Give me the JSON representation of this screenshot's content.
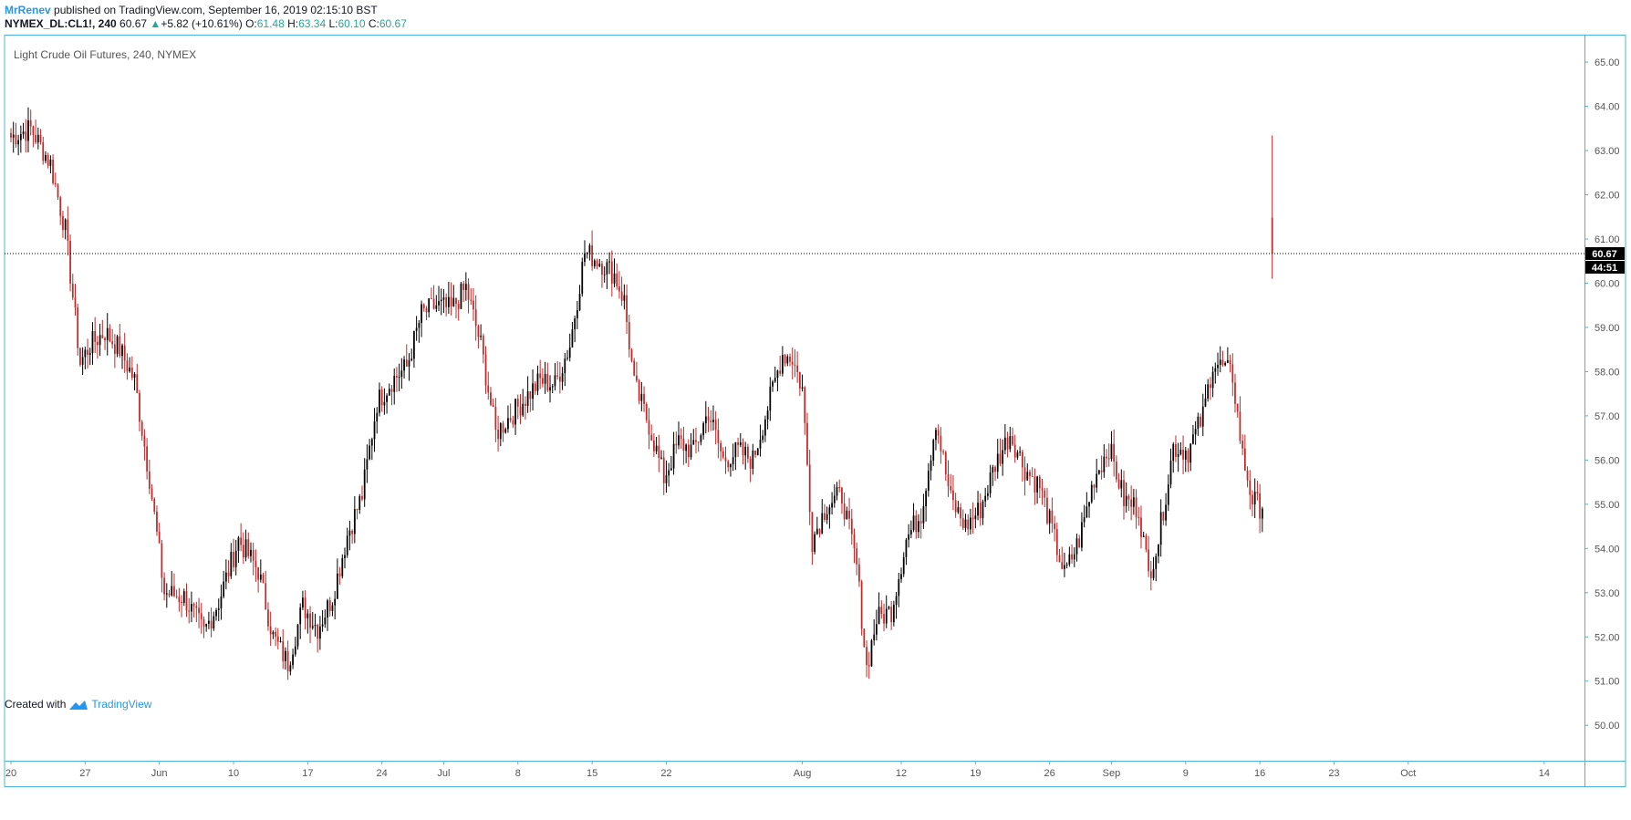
{
  "header": {
    "author": "MrRenev",
    "published": "published on TradingView.com, September 16, 2019 02:15:10 BST"
  },
  "quote": {
    "symbol": "NYMEX_DL:CL1!, 240",
    "last": "60.67",
    "change_arrow": "▲",
    "change": "+5.82 (+10.61%)",
    "o_label": "O:",
    "o": "61.48",
    "h_label": "H:",
    "h": "63.34",
    "l_label": "L:",
    "l": "60.10",
    "c_label": "C:",
    "c": "60.67"
  },
  "footer": {
    "created_with": "Created with",
    "brand": "TradingView",
    "logo_icon": "tradingview-logo-icon"
  },
  "colors": {
    "up": "#000000",
    "down": "#c62828",
    "accent": "#2196f3",
    "border": "#4db6d8",
    "green": "#26a69a"
  },
  "chart_data": {
    "type": "candlestick",
    "title": "Light Crude Oil Futures, 240, NYMEX",
    "ylim": [
      49.2,
      65.6
    ],
    "y_ticks": [
      "50.00",
      "51.00",
      "52.00",
      "53.00",
      "54.00",
      "55.00",
      "56.00",
      "57.00",
      "58.00",
      "59.00",
      "60.00",
      "61.00",
      "62.00",
      "63.00",
      "64.00",
      "65.00"
    ],
    "x_ticks": [
      {
        "label": "20",
        "bar": 0
      },
      {
        "label": "27",
        "bar": 30
      },
      {
        "label": "Jun",
        "bar": 60
      },
      {
        "label": "10",
        "bar": 90
      },
      {
        "label": "17",
        "bar": 120
      },
      {
        "label": "24",
        "bar": 150
      },
      {
        "label": "Jul",
        "bar": 175
      },
      {
        "label": "8",
        "bar": 205
      },
      {
        "label": "15",
        "bar": 235
      },
      {
        "label": "22",
        "bar": 265
      },
      {
        "label": "Aug",
        "bar": 320
      },
      {
        "label": "12",
        "bar": 360
      },
      {
        "label": "19",
        "bar": 390
      },
      {
        "label": "26",
        "bar": 420
      },
      {
        "label": "Sep",
        "bar": 445
      },
      {
        "label": "9",
        "bar": 475
      },
      {
        "label": "16",
        "bar": 505
      },
      {
        "label": "23",
        "bar": 535
      },
      {
        "label": "Oct",
        "bar": 565
      },
      {
        "label": "14",
        "bar": 620
      }
    ],
    "x_range_bars": [
      0,
      630
    ],
    "last_price": 60.67,
    "last_price_label": "60.67",
    "countdown_label": "44:51",
    "anchors": [
      {
        "bar": 0,
        "close": 63.3
      },
      {
        "bar": 8,
        "close": 63.5
      },
      {
        "bar": 16,
        "close": 62.7
      },
      {
        "bar": 22,
        "close": 61.2
      },
      {
        "bar": 28,
        "close": 58.2
      },
      {
        "bar": 32,
        "close": 58.6
      },
      {
        "bar": 38,
        "close": 58.9
      },
      {
        "bar": 44,
        "close": 58.5
      },
      {
        "bar": 50,
        "close": 57.8
      },
      {
        "bar": 56,
        "close": 55.6
      },
      {
        "bar": 62,
        "close": 53.0
      },
      {
        "bar": 70,
        "close": 52.9
      },
      {
        "bar": 78,
        "close": 52.1
      },
      {
        "bar": 84,
        "close": 52.8
      },
      {
        "bar": 92,
        "close": 54.2
      },
      {
        "bar": 100,
        "close": 53.5
      },
      {
        "bar": 106,
        "close": 52.0
      },
      {
        "bar": 112,
        "close": 51.4
      },
      {
        "bar": 118,
        "close": 52.7
      },
      {
        "bar": 124,
        "close": 52.2
      },
      {
        "bar": 130,
        "close": 52.9
      },
      {
        "bar": 136,
        "close": 54.3
      },
      {
        "bar": 142,
        "close": 55.2
      },
      {
        "bar": 148,
        "close": 57.3
      },
      {
        "bar": 154,
        "close": 57.8
      },
      {
        "bar": 160,
        "close": 58.1
      },
      {
        "bar": 166,
        "close": 59.3
      },
      {
        "bar": 172,
        "close": 59.5
      },
      {
        "bar": 178,
        "close": 59.4
      },
      {
        "bar": 184,
        "close": 59.9
      },
      {
        "bar": 190,
        "close": 58.6
      },
      {
        "bar": 196,
        "close": 56.6
      },
      {
        "bar": 202,
        "close": 57.0
      },
      {
        "bar": 208,
        "close": 57.4
      },
      {
        "bar": 214,
        "close": 57.8
      },
      {
        "bar": 220,
        "close": 57.7
      },
      {
        "bar": 226,
        "close": 58.6
      },
      {
        "bar": 232,
        "close": 60.7
      },
      {
        "bar": 238,
        "close": 60.5
      },
      {
        "bar": 244,
        "close": 60.2
      },
      {
        "bar": 248,
        "close": 59.6
      },
      {
        "bar": 252,
        "close": 57.7
      },
      {
        "bar": 258,
        "close": 56.8
      },
      {
        "bar": 264,
        "close": 55.6
      },
      {
        "bar": 270,
        "close": 56.4
      },
      {
        "bar": 276,
        "close": 56.2
      },
      {
        "bar": 282,
        "close": 57.1
      },
      {
        "bar": 288,
        "close": 56.0
      },
      {
        "bar": 294,
        "close": 56.2
      },
      {
        "bar": 300,
        "close": 56.0
      },
      {
        "bar": 306,
        "close": 57.2
      },
      {
        "bar": 312,
        "close": 58.4
      },
      {
        "bar": 316,
        "close": 58.3
      },
      {
        "bar": 320,
        "close": 57.6
      },
      {
        "bar": 324,
        "close": 54.2
      },
      {
        "bar": 330,
        "close": 55.0
      },
      {
        "bar": 336,
        "close": 55.2
      },
      {
        "bar": 342,
        "close": 53.6
      },
      {
        "bar": 346,
        "close": 51.3
      },
      {
        "bar": 350,
        "close": 52.4
      },
      {
        "bar": 356,
        "close": 52.6
      },
      {
        "bar": 362,
        "close": 54.2
      },
      {
        "bar": 368,
        "close": 54.8
      },
      {
        "bar": 374,
        "close": 56.9
      },
      {
        "bar": 380,
        "close": 55.1
      },
      {
        "bar": 386,
        "close": 54.5
      },
      {
        "bar": 392,
        "close": 54.9
      },
      {
        "bar": 398,
        "close": 55.9
      },
      {
        "bar": 404,
        "close": 56.6
      },
      {
        "bar": 410,
        "close": 55.8
      },
      {
        "bar": 416,
        "close": 55.4
      },
      {
        "bar": 420,
        "close": 54.6
      },
      {
        "bar": 426,
        "close": 53.4
      },
      {
        "bar": 432,
        "close": 54.2
      },
      {
        "bar": 438,
        "close": 55.6
      },
      {
        "bar": 444,
        "close": 56.3
      },
      {
        "bar": 450,
        "close": 55.1
      },
      {
        "bar": 456,
        "close": 54.9
      },
      {
        "bar": 460,
        "close": 53.4
      },
      {
        "bar": 464,
        "close": 54.2
      },
      {
        "bar": 470,
        "close": 56.3
      },
      {
        "bar": 476,
        "close": 56.2
      },
      {
        "bar": 482,
        "close": 57.0
      },
      {
        "bar": 486,
        "close": 58.2
      },
      {
        "bar": 490,
        "close": 58.1
      },
      {
        "bar": 494,
        "close": 57.9
      },
      {
        "bar": 498,
        "close": 56.1
      },
      {
        "bar": 502,
        "close": 55.1
      },
      {
        "bar": 506,
        "close": 54.9
      }
    ],
    "last_bar": {
      "bar": 510,
      "open": 61.48,
      "high": 63.34,
      "low": 60.1,
      "close": 60.67
    }
  }
}
